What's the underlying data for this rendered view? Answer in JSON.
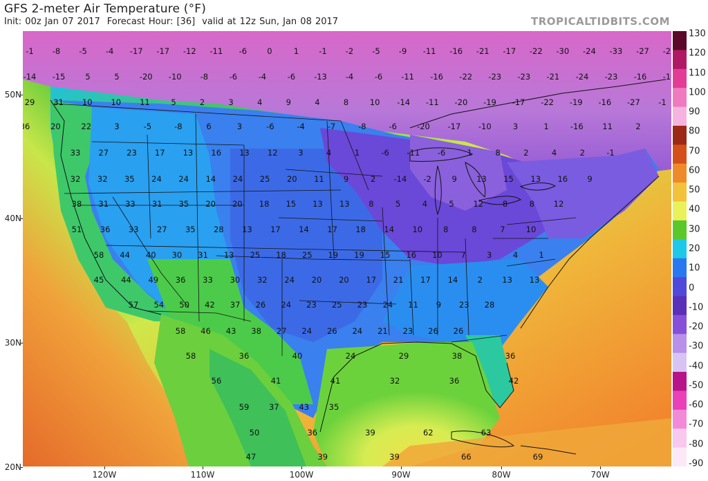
{
  "title": "GFS 2-meter Air Temperature (°F)",
  "subtitle": {
    "init": "Init: 00z Jan 07 2017",
    "forecast_hour": "Forecast Hour: [36]",
    "valid": "valid at 12z Sun, Jan 08 2017"
  },
  "brand": "TROPICALTIDBITS.COM",
  "colorbar": {
    "labels": [
      "130",
      "120",
      "110",
      "100",
      "90",
      "80",
      "70",
      "60",
      "50",
      "40",
      "30",
      "20",
      "10",
      "0",
      "-10",
      "-20",
      "-30",
      "-40",
      "-50",
      "-60",
      "-70",
      "-80",
      "-90"
    ],
    "colors": [
      "#5a0a28",
      "#b01864",
      "#e33c96",
      "#f07abf",
      "#f7b3e0",
      "#9c2818",
      "#d4501a",
      "#ef8a2a",
      "#f2c23a",
      "#eaf25a",
      "#5ac82a",
      "#1ec8e8",
      "#2a78f0",
      "#5048d8",
      "#5a30b8",
      "#8650d8",
      "#b890e8",
      "#d8c4f4",
      "#b8148a",
      "#ea40b8",
      "#f28ad8",
      "#f8c8ee",
      "#fde8f8"
    ]
  },
  "lat_labels": [
    "50N",
    "40N",
    "30N",
    "20N"
  ],
  "lon_labels": [
    "120W",
    "110W",
    "100W",
    "90W",
    "80W",
    "70W"
  ],
  "temperatures": [
    [
      "-1",
      "-8",
      "-5",
      "-4",
      "-17",
      "-17",
      "-12",
      "-11",
      "-6",
      "0",
      "1",
      "-1",
      "-2",
      "-5",
      "-9",
      "-11",
      "-16",
      "-21",
      "-17",
      "-22",
      "-30",
      "-24",
      "-33",
      "-27",
      "-22"
    ],
    [
      "-14",
      "-15",
      "5",
      "5",
      "-20",
      "-10",
      "-8",
      "-6",
      "-4",
      "-6",
      "-13",
      "-4",
      "-6",
      "-11",
      "-16",
      "-22",
      "-23",
      "-23",
      "-21",
      "-24",
      "-23",
      "-16",
      "-10"
    ],
    [
      "29",
      "31",
      "10",
      "10",
      "11",
      "5",
      "2",
      "3",
      "4",
      "9",
      "4",
      "8",
      "10",
      "-14",
      "-11",
      "-20",
      "-19",
      "-17",
      "-22",
      "-19",
      "-16",
      "-27",
      "-1"
    ],
    [
      "36",
      "20",
      "22",
      "3",
      "-5",
      "-8",
      "6",
      "3",
      "-6",
      "-4",
      "-7",
      "-8",
      "-6",
      "-20",
      "-17",
      "-10",
      "3",
      "1",
      "-16",
      "11",
      "2"
    ],
    [
      "33",
      "27",
      "23",
      "17",
      "13",
      "16",
      "13",
      "12",
      "3",
      "4",
      "1",
      "-6",
      "-11",
      "-6",
      "1",
      "8",
      "2",
      "4",
      "2",
      "-1"
    ],
    [
      "32",
      "32",
      "35",
      "24",
      "24",
      "14",
      "24",
      "25",
      "20",
      "11",
      "9",
      "2",
      "-14",
      "-2",
      "9",
      "13",
      "15",
      "13",
      "16",
      "9"
    ],
    [
      "38",
      "31",
      "33",
      "31",
      "35",
      "20",
      "20",
      "18",
      "15",
      "13",
      "13",
      "8",
      "5",
      "4",
      "5",
      "12",
      "8",
      "8",
      "12"
    ],
    [
      "51",
      "36",
      "33",
      "27",
      "35",
      "28",
      "13",
      "17",
      "14",
      "17",
      "18",
      "14",
      "10",
      "8",
      "8",
      "7",
      "10"
    ],
    [
      "58",
      "44",
      "40",
      "30",
      "31",
      "13",
      "25",
      "18",
      "25",
      "19",
      "19",
      "15",
      "16",
      "10",
      "7",
      "3",
      "4",
      "1"
    ],
    [
      "45",
      "44",
      "49",
      "36",
      "33",
      "30",
      "32",
      "24",
      "20",
      "20",
      "17",
      "21",
      "17",
      "14",
      "2",
      "13",
      "13"
    ],
    [
      "57",
      "54",
      "50",
      "42",
      "37",
      "26",
      "24",
      "23",
      "25",
      "23",
      "24",
      "11",
      "9",
      "23",
      "28"
    ],
    [
      "58",
      "46",
      "43",
      "38",
      "27",
      "24",
      "26",
      "24",
      "21",
      "23",
      "26",
      "26"
    ],
    [
      "58",
      "36",
      "40",
      "24",
      "29",
      "38",
      "36"
    ],
    [
      "56",
      "41",
      "41",
      "32",
      "36",
      "42"
    ],
    [
      "59",
      "37",
      "43",
      "35"
    ],
    [
      "50",
      "36",
      "39",
      "62",
      "63"
    ],
    [
      "47",
      "39",
      "39",
      "66",
      "69"
    ]
  ]
}
